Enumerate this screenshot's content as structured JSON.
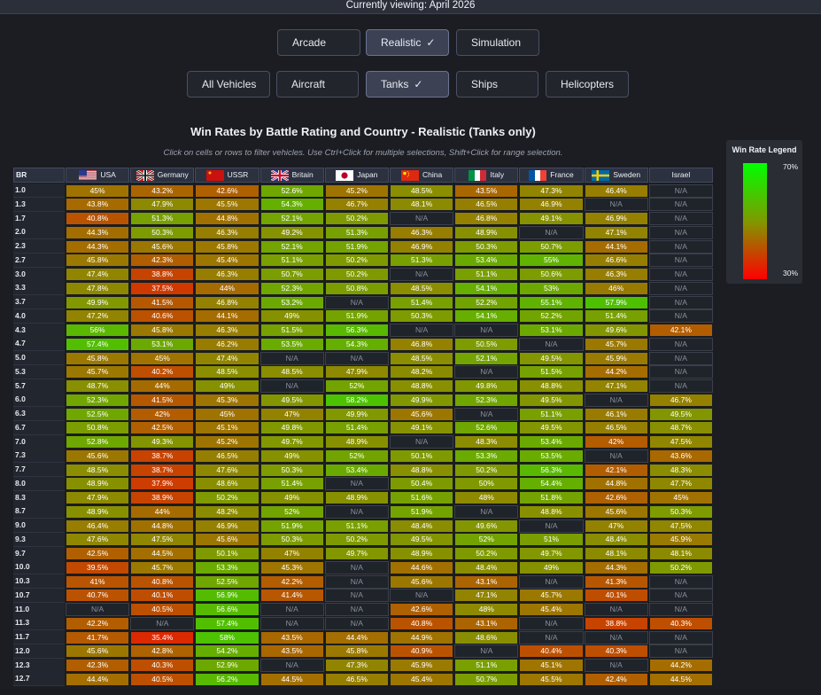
{
  "header": {
    "viewing_text": "Currently viewing: April 2026"
  },
  "modes": [
    {
      "label": "Arcade",
      "active": false
    },
    {
      "label": "Realistic",
      "active": true
    },
    {
      "label": "Simulation",
      "active": false
    }
  ],
  "vehicle_types": [
    {
      "label": "All Vehicles",
      "active": false
    },
    {
      "label": "Aircraft",
      "active": false
    },
    {
      "label": "Tanks",
      "active": true
    },
    {
      "label": "Ships",
      "active": false
    },
    {
      "label": "Helicopters",
      "active": false
    }
  ],
  "check_mark": "✓",
  "chart_data": {
    "type": "heatmap",
    "title": "Win Rates by Battle Rating and Country - Realistic (Tanks only)",
    "subtitle": "Click on cells or rows to filter vehicles. Use Ctrl+Click for multiple selections, Shift+Click for range selection.",
    "row_header": "BR",
    "columns": [
      "USA",
      "Germany",
      "USSR",
      "Britain",
      "Japan",
      "China",
      "Italy",
      "France",
      "Sweden",
      "Israel"
    ],
    "flag_icons": [
      "usa-flag-icon",
      "germany-flag-icon",
      "ussr-flag-icon",
      "britain-flag-icon",
      "japan-flag-icon",
      "china-flag-icon",
      "italy-flag-icon",
      "france-flag-icon",
      "sweden-flag-icon",
      "israel-flag-icon"
    ],
    "rows": [
      "1.0",
      "1.3",
      "1.7",
      "2.0",
      "2.3",
      "2.7",
      "3.0",
      "3.3",
      "3.7",
      "4.0",
      "4.3",
      "4.7",
      "5.0",
      "5.3",
      "5.7",
      "6.0",
      "6.3",
      "6.7",
      "7.0",
      "7.3",
      "7.7",
      "8.0",
      "8.3",
      "8.7",
      "9.0",
      "9.3",
      "9.7",
      "10.0",
      "10.3",
      "10.7",
      "11.0",
      "11.3",
      "11.7",
      "12.0",
      "12.3",
      "12.7"
    ],
    "values": [
      [
        "45%",
        "43.2%",
        "42.6%",
        "52.6%",
        "45.2%",
        "48.5%",
        "43.5%",
        "47.3%",
        "46.4%",
        "N/A"
      ],
      [
        "43.8%",
        "47.9%",
        "45.5%",
        "54.3%",
        "46.7%",
        "48.1%",
        "46.5%",
        "46.9%",
        "N/A",
        "N/A"
      ],
      [
        "40.8%",
        "51.3%",
        "44.8%",
        "52.1%",
        "50.2%",
        "N/A",
        "46.8%",
        "49.1%",
        "46.9%",
        "N/A"
      ],
      [
        "44.3%",
        "50.3%",
        "46.3%",
        "49.2%",
        "51.3%",
        "46.3%",
        "48.9%",
        "N/A",
        "47.1%",
        "N/A"
      ],
      [
        "44.3%",
        "45.6%",
        "45.8%",
        "52.1%",
        "51.9%",
        "46.9%",
        "50.3%",
        "50.7%",
        "44.1%",
        "N/A"
      ],
      [
        "45.8%",
        "42.3%",
        "45.4%",
        "51.1%",
        "50.2%",
        "51.3%",
        "53.4%",
        "55%",
        "46.6%",
        "N/A"
      ],
      [
        "47.4%",
        "38.8%",
        "46.3%",
        "50.7%",
        "50.2%",
        "N/A",
        "51.1%",
        "50.6%",
        "46.3%",
        "N/A"
      ],
      [
        "47.8%",
        "37.5%",
        "44%",
        "52.3%",
        "50.8%",
        "48.5%",
        "54.1%",
        "53%",
        "46%",
        "N/A"
      ],
      [
        "49.9%",
        "41.5%",
        "46.8%",
        "53.2%",
        "N/A",
        "51.4%",
        "52.2%",
        "55.1%",
        "57.9%",
        "N/A"
      ],
      [
        "47.2%",
        "40.6%",
        "44.1%",
        "49%",
        "51.9%",
        "50.3%",
        "54.1%",
        "52.2%",
        "51.4%",
        "N/A"
      ],
      [
        "56%",
        "45.8%",
        "46.3%",
        "51.5%",
        "56.3%",
        "N/A",
        "N/A",
        "53.1%",
        "49.6%",
        "42.1%"
      ],
      [
        "57.4%",
        "53.1%",
        "46.2%",
        "53.5%",
        "54.3%",
        "46.8%",
        "50.5%",
        "N/A",
        "45.7%",
        "N/A"
      ],
      [
        "45.8%",
        "45%",
        "47.4%",
        "N/A",
        "N/A",
        "48.5%",
        "52.1%",
        "49.5%",
        "45.9%",
        "N/A"
      ],
      [
        "45.7%",
        "40.2%",
        "48.5%",
        "48.5%",
        "47.9%",
        "48.2%",
        "N/A",
        "51.5%",
        "44.2%",
        "N/A"
      ],
      [
        "48.7%",
        "44%",
        "49%",
        "N/A",
        "52%",
        "48.8%",
        "49.8%",
        "48.8%",
        "47.1%",
        "N/A"
      ],
      [
        "52.3%",
        "41.5%",
        "45.3%",
        "49.5%",
        "58.2%",
        "49.9%",
        "52.3%",
        "49.5%",
        "N/A",
        "46.7%"
      ],
      [
        "52.5%",
        "42%",
        "45%",
        "47%",
        "49.9%",
        "45.6%",
        "N/A",
        "51.1%",
        "46.1%",
        "49.5%"
      ],
      [
        "50.8%",
        "42.5%",
        "45.1%",
        "49.8%",
        "51.4%",
        "49.1%",
        "52.6%",
        "49.5%",
        "46.5%",
        "48.7%"
      ],
      [
        "52.8%",
        "49.3%",
        "45.2%",
        "49.7%",
        "48.9%",
        "N/A",
        "48.3%",
        "53.4%",
        "42%",
        "47.5%"
      ],
      [
        "45.6%",
        "38.7%",
        "46.5%",
        "49%",
        "52%",
        "50.1%",
        "53.3%",
        "53.5%",
        "N/A",
        "43.6%"
      ],
      [
        "48.5%",
        "38.7%",
        "47.6%",
        "50.3%",
        "53.4%",
        "48.8%",
        "50.2%",
        "56.3%",
        "42.1%",
        "48.3%"
      ],
      [
        "48.9%",
        "37.9%",
        "48.6%",
        "51.4%",
        "N/A",
        "50.4%",
        "50%",
        "54.4%",
        "44.8%",
        "47.7%"
      ],
      [
        "47.9%",
        "38.9%",
        "50.2%",
        "49%",
        "48.9%",
        "51.6%",
        "48%",
        "51.8%",
        "42.6%",
        "45%"
      ],
      [
        "48.9%",
        "44%",
        "48.2%",
        "52%",
        "N/A",
        "51.9%",
        "N/A",
        "48.8%",
        "45.6%",
        "50.3%"
      ],
      [
        "46.4%",
        "44.8%",
        "46.9%",
        "51.9%",
        "51.1%",
        "48.4%",
        "49.6%",
        "N/A",
        "47%",
        "47.5%"
      ],
      [
        "47.6%",
        "47.5%",
        "45.6%",
        "50.3%",
        "50.2%",
        "49.5%",
        "52%",
        "51%",
        "48.4%",
        "45.9%"
      ],
      [
        "42.5%",
        "44.5%",
        "50.1%",
        "47%",
        "49.7%",
        "48.9%",
        "50.2%",
        "49.7%",
        "48.1%",
        "48.1%"
      ],
      [
        "39.5%",
        "45.7%",
        "53.3%",
        "45.3%",
        "N/A",
        "44.6%",
        "48.4%",
        "49%",
        "44.3%",
        "50.2%"
      ],
      [
        "41%",
        "40.8%",
        "52.5%",
        "42.2%",
        "N/A",
        "45.6%",
        "43.1%",
        "N/A",
        "41.3%",
        "N/A"
      ],
      [
        "40.7%",
        "40.1%",
        "56.9%",
        "41.4%",
        "N/A",
        "N/A",
        "47.1%",
        "45.7%",
        "40.1%",
        "N/A"
      ],
      [
        "N/A",
        "40.5%",
        "56.6%",
        "N/A",
        "N/A",
        "42.6%",
        "48%",
        "45.4%",
        "N/A",
        "N/A"
      ],
      [
        "42.2%",
        "N/A",
        "57.4%",
        "N/A",
        "N/A",
        "40.8%",
        "43.1%",
        "N/A",
        "38.8%",
        "40.3%"
      ],
      [
        "41.7%",
        "35.4%",
        "58%",
        "43.5%",
        "44.4%",
        "44.9%",
        "48.6%",
        "N/A",
        "N/A",
        "N/A"
      ],
      [
        "45.6%",
        "42.8%",
        "54.2%",
        "43.5%",
        "45.8%",
        "40.9%",
        "N/A",
        "40.4%",
        "40.3%",
        "N/A"
      ],
      [
        "42.3%",
        "40.3%",
        "52.9%",
        "N/A",
        "47.3%",
        "45.9%",
        "51.1%",
        "45.1%",
        "N/A",
        "44.2%"
      ],
      [
        "44.4%",
        "40.5%",
        "56.2%",
        "44.5%",
        "46.5%",
        "45.4%",
        "50.7%",
        "45.5%",
        "42.4%",
        "44.5%"
      ]
    ],
    "na_label": "N/A",
    "color_scale": {
      "min": 30,
      "max": 70,
      "low_color": "#ff0000",
      "mid_color": "#809900",
      "high_color": "#00ff00"
    },
    "legend": {
      "title": "Win Rate Legend",
      "max_label": "70%",
      "min_label": "30%",
      "placement": "right"
    }
  }
}
